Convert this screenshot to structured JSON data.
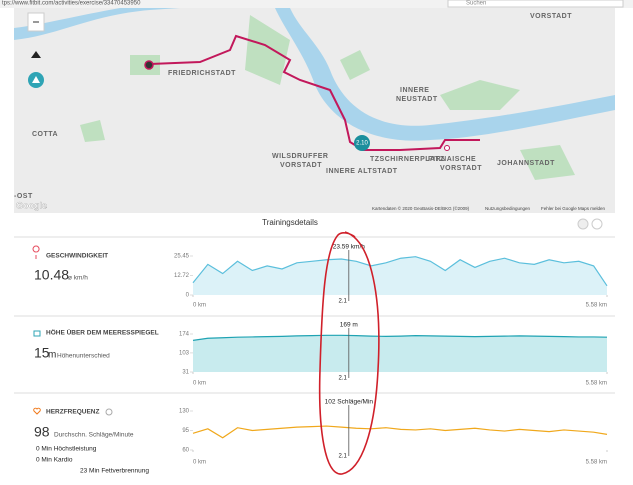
{
  "browser": {
    "url": "tps://www.fitbit.com/activities/exercise/33470453950",
    "search": "Suchen"
  },
  "map": {
    "labels": [
      "FRIEDRICHSTADT",
      "VORSTADT",
      "INNERE",
      "NEUSTADT",
      "COTTA",
      "WILSDRUFFER",
      "VORSTADT",
      "INNERE ALTSTADT",
      "TZSCHIRNERPLATZ",
      "PIRNAISCHE",
      "VORSTADT",
      "JOHANNSTADT",
      "-OST"
    ],
    "marker": "2.10",
    "logo": "Google",
    "attribution": "Kartendaten © 2020 GeoBasis-DE/BKG (©2009)",
    "terms": "Nutzungsbedingungen",
    "report": "Fehler bei Google Maps melden"
  },
  "section_title": "Trainingsdetails",
  "panels": [
    {
      "heading": "GESCHWINDIGKEIT",
      "value": 10.48,
      "unit": "ø km/h"
    },
    {
      "heading": "HÖHE ÜBER DEM MEERESSPIEGEL",
      "value": 15,
      "unit": "m",
      "caption": "Höhenunterschied"
    },
    {
      "heading": "HERZFREQUENZ",
      "value": 98,
      "caption": "Durchschn. Schläge/Minute",
      "zones": [
        "0 Min Höchstleistung",
        "0 Min Kardio",
        "23 Min Fettverbrennung"
      ]
    }
  ],
  "chart_data": [
    {
      "type": "area",
      "x": [
        0,
        0.2,
        0.4,
        0.6,
        0.8,
        1.0,
        1.2,
        1.4,
        1.6,
        1.8,
        2.0,
        2.2,
        2.4,
        2.6,
        2.8,
        3.0,
        3.2,
        3.4,
        3.6,
        3.8,
        4.0,
        4.2,
        4.4,
        4.6,
        4.8,
        5.0,
        5.2,
        5.4,
        5.58
      ],
      "series": [
        {
          "color": "#5bbfdc",
          "fill": "#dcf2f8",
          "values": [
            8,
            20,
            14,
            22,
            16,
            19,
            17,
            21,
            22,
            23,
            23.5,
            22,
            19,
            21,
            24,
            25,
            22,
            16,
            23,
            18,
            22,
            24,
            21,
            20,
            23,
            21,
            22,
            19,
            6
          ]
        }
      ],
      "xlim": [
        0,
        5.58
      ],
      "xticks": [
        {
          "value": 0,
          "label": "0 km"
        },
        {
          "value": 5.58,
          "label": "5.58 km"
        }
      ],
      "ylim": [
        0,
        25.45
      ],
      "yticks": [
        0,
        12.72,
        25.45
      ],
      "cursor": {
        "x": 2.1,
        "value": 23.59,
        "label": "23.59 km/h"
      }
    },
    {
      "type": "area",
      "x": [
        0,
        0.2,
        0.4,
        0.6,
        0.8,
        1.0,
        1.2,
        1.4,
        1.6,
        1.8,
        2.0,
        2.2,
        2.4,
        2.6,
        2.8,
        3.0,
        3.2,
        3.4,
        3.6,
        3.8,
        4.0,
        4.2,
        4.4,
        4.6,
        4.8,
        5.0,
        5.2,
        5.4,
        5.58
      ],
      "series": [
        {
          "color": "#1fa3b3",
          "fill": "#c8ebee",
          "values": [
            150,
            158,
            160,
            162,
            163,
            164,
            165,
            167,
            168,
            169,
            169,
            168,
            166,
            165,
            166,
            168,
            167,
            166,
            165,
            164,
            165,
            166,
            167,
            166,
            165,
            164,
            163,
            163,
            162
          ]
        }
      ],
      "xlim": [
        0,
        5.58
      ],
      "xticks": [
        {
          "value": 0,
          "label": "0 km"
        },
        {
          "value": 5.58,
          "label": "5.58 km"
        }
      ],
      "ylim": [
        31,
        174
      ],
      "yticks": [
        31,
        103,
        174
      ],
      "cursor": {
        "x": 2.1,
        "value": 169,
        "label": "169 m"
      }
    },
    {
      "type": "line",
      "x": [
        0,
        0.2,
        0.4,
        0.6,
        0.8,
        1.0,
        1.2,
        1.4,
        1.6,
        1.8,
        2.0,
        2.2,
        2.4,
        2.6,
        2.8,
        3.0,
        3.2,
        3.4,
        3.6,
        3.8,
        4.0,
        4.2,
        4.4,
        4.6,
        4.8,
        5.0,
        5.2,
        5.4,
        5.58
      ],
      "series": [
        {
          "color": "#f0a81c",
          "values": [
            90,
            98,
            82,
            100,
            95,
            97,
            99,
            101,
            102,
            103,
            101,
            99,
            98,
            100,
            97,
            96,
            98,
            95,
            97,
            99,
            96,
            94,
            97,
            95,
            93,
            96,
            94,
            92,
            88
          ]
        }
      ],
      "xlim": [
        0,
        5.58
      ],
      "xticks": [
        {
          "value": 0,
          "label": "0 km"
        },
        {
          "value": 5.58,
          "label": "5.58 km"
        }
      ],
      "ylim": [
        60,
        130
      ],
      "yticks": [
        60,
        95,
        130
      ],
      "cursor": {
        "x": 2.1,
        "value": 102,
        "label": "102 Schläge/Min"
      }
    }
  ]
}
